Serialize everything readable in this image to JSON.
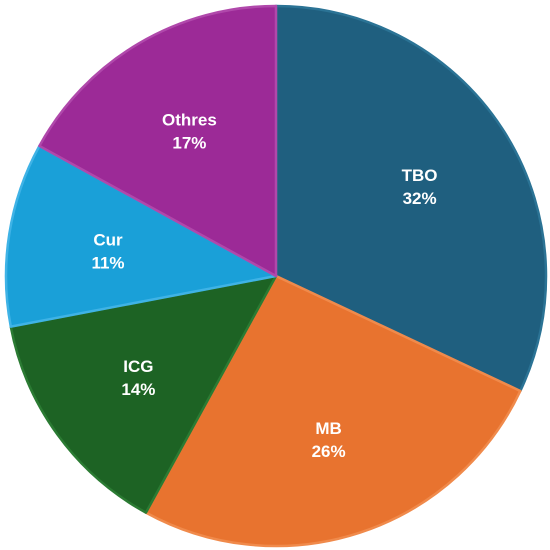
{
  "chart_data": {
    "type": "pie",
    "title": "",
    "categories": [
      "TBO",
      "MB",
      "ICG",
      "Cur",
      "Othres"
    ],
    "values": [
      32,
      26,
      14,
      11,
      17
    ],
    "value_labels": [
      "32%",
      "26%",
      "14%",
      "11%",
      "17%"
    ],
    "colors": [
      "#1f5f7f",
      "#e8732f",
      "#1d6324",
      "#1aa0d8",
      "#9c2a97"
    ],
    "edge_colors": [
      "#2b7395",
      "#f08a4b",
      "#2b7b33",
      "#3fb3e6",
      "#b048ab"
    ],
    "start_angle_deg": 0,
    "direction": "clockwise",
    "legend": "none",
    "label_color": "#ffffff"
  }
}
